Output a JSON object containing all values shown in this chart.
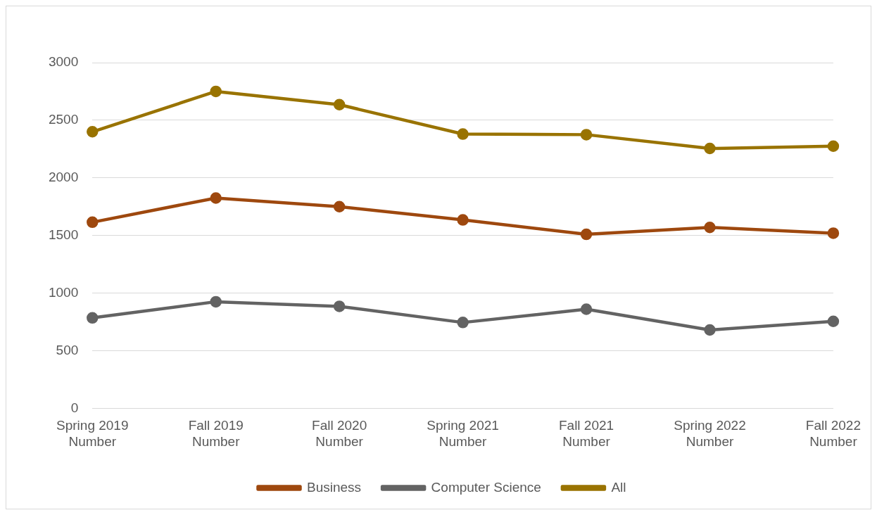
{
  "chart_data": {
    "type": "line",
    "categories": [
      "Spring 2019\nNumber",
      "Fall 2019\nNumber",
      "Fall 2020\nNumber",
      "Spring 2021\nNumber",
      "Fall 2021\nNumber",
      "Spring 2022\nNumber",
      "Fall 2022\nNumber"
    ],
    "series": [
      {
        "name": "Business",
        "color": "#9e480e",
        "values": [
          1615,
          1825,
          1750,
          1635,
          1510,
          1570,
          1520
        ]
      },
      {
        "name": "Computer Science",
        "color": "#636363",
        "values": [
          785,
          925,
          885,
          745,
          860,
          680,
          755
        ]
      },
      {
        "name": "All",
        "color": "#997300",
        "values": [
          2400,
          2750,
          2635,
          2380,
          2375,
          2255,
          2275
        ]
      }
    ],
    "ylim": [
      0,
      3000
    ],
    "yticks": [
      0,
      500,
      1000,
      1500,
      2000,
      2500,
      3000
    ],
    "grid": "y",
    "legend": "bottom",
    "marker": "circle",
    "line_style": "solid"
  }
}
